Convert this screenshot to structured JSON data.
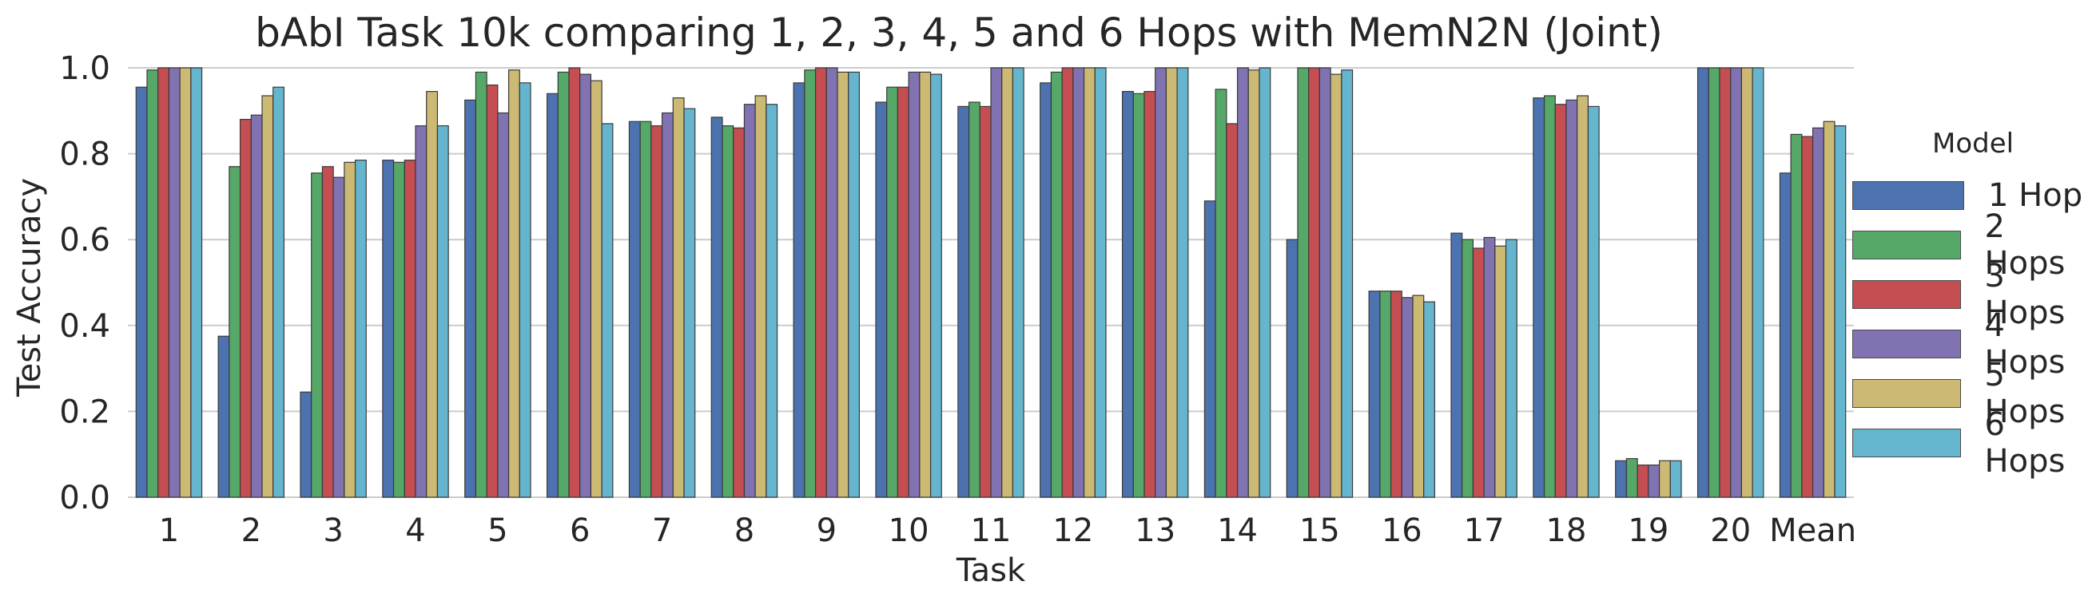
{
  "chart_data": {
    "type": "bar",
    "title": "bAbI Task 10k comparing 1, 2, 3, 4, 5 and 6 Hops with MemN2N (Joint)",
    "xlabel": "Task",
    "ylabel": "Test Accuracy",
    "ylim": [
      0,
      1.0
    ],
    "yticks": [
      "0.0",
      "0.2",
      "0.4",
      "0.6",
      "0.8",
      "1.0"
    ],
    "grid": "horizontal",
    "legend_title": "Model",
    "legend_position": "right",
    "categories": [
      "1",
      "2",
      "3",
      "4",
      "5",
      "6",
      "7",
      "8",
      "9",
      "10",
      "11",
      "12",
      "13",
      "14",
      "15",
      "16",
      "17",
      "18",
      "19",
      "20",
      "Mean"
    ],
    "series": [
      {
        "name": "1 Hop",
        "color": "#4c72b0",
        "values": [
          0.955,
          0.375,
          0.245,
          0.785,
          0.925,
          0.94,
          0.875,
          0.885,
          0.965,
          0.92,
          0.91,
          0.965,
          0.945,
          0.69,
          0.6,
          0.48,
          0.615,
          0.93,
          0.085,
          1.0,
          0.755
        ]
      },
      {
        "name": "2 Hops",
        "color": "#55a868",
        "values": [
          0.995,
          0.77,
          0.755,
          0.78,
          0.99,
          0.99,
          0.875,
          0.865,
          0.995,
          0.955,
          0.92,
          0.99,
          0.94,
          0.95,
          1.0,
          0.48,
          0.6,
          0.935,
          0.09,
          1.0,
          0.845
        ]
      },
      {
        "name": "3 Hops",
        "color": "#c44e52",
        "values": [
          1.0,
          0.88,
          0.77,
          0.785,
          0.96,
          1.0,
          0.865,
          0.86,
          1.0,
          0.955,
          0.91,
          1.0,
          0.945,
          0.87,
          1.0,
          0.48,
          0.58,
          0.915,
          0.075,
          1.0,
          0.84
        ]
      },
      {
        "name": "4 Hops",
        "color": "#8172b2",
        "values": [
          1.0,
          0.89,
          0.745,
          0.865,
          0.895,
          0.985,
          0.895,
          0.915,
          1.0,
          0.99,
          1.0,
          1.0,
          1.0,
          1.0,
          1.0,
          0.465,
          0.605,
          0.925,
          0.075,
          1.0,
          0.86
        ]
      },
      {
        "name": "5 Hops",
        "color": "#ccb974",
        "values": [
          1.0,
          0.935,
          0.78,
          0.945,
          0.995,
          0.97,
          0.93,
          0.935,
          0.99,
          0.99,
          1.0,
          1.0,
          1.0,
          0.995,
          0.985,
          0.47,
          0.585,
          0.935,
          0.085,
          1.0,
          0.875
        ]
      },
      {
        "name": "6 Hops",
        "color": "#64b5cd",
        "values": [
          1.0,
          0.955,
          0.785,
          0.865,
          0.965,
          0.87,
          0.905,
          0.915,
          0.99,
          0.985,
          1.0,
          1.0,
          1.0,
          1.0,
          0.995,
          0.455,
          0.6,
          0.91,
          0.085,
          1.0,
          0.865
        ]
      }
    ]
  }
}
